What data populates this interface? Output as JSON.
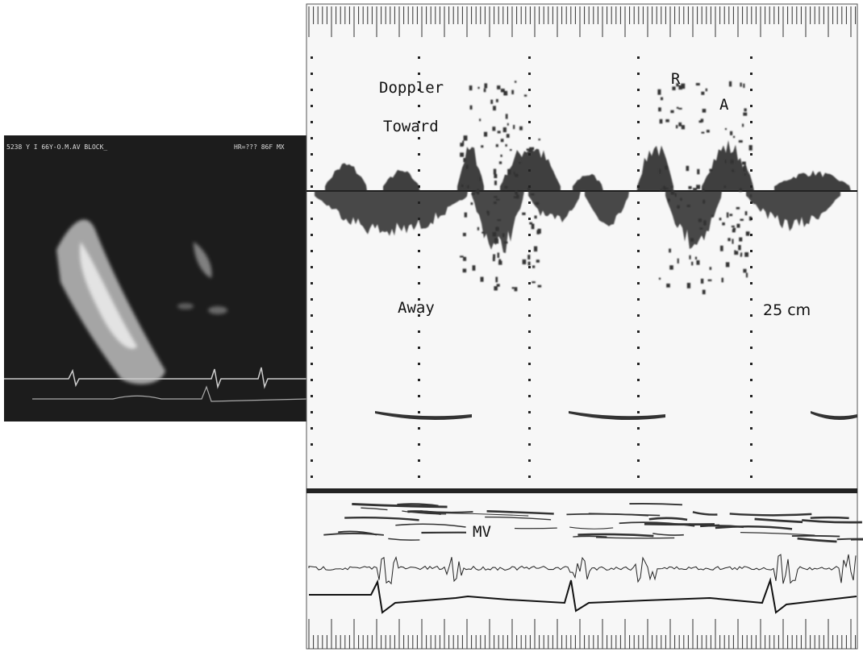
{
  "echo_panel": {
    "header": "5238 Y I 66Y-O.M.AV BLOCK_",
    "heart_rate": "HR=??? 86F MX"
  },
  "doppler_panel": {
    "doppler": "Doppler",
    "toward": "Toward",
    "r_wave": "R",
    "a_wave": "A",
    "away": "Away",
    "scale": "25 cm",
    "mv": "MV"
  }
}
